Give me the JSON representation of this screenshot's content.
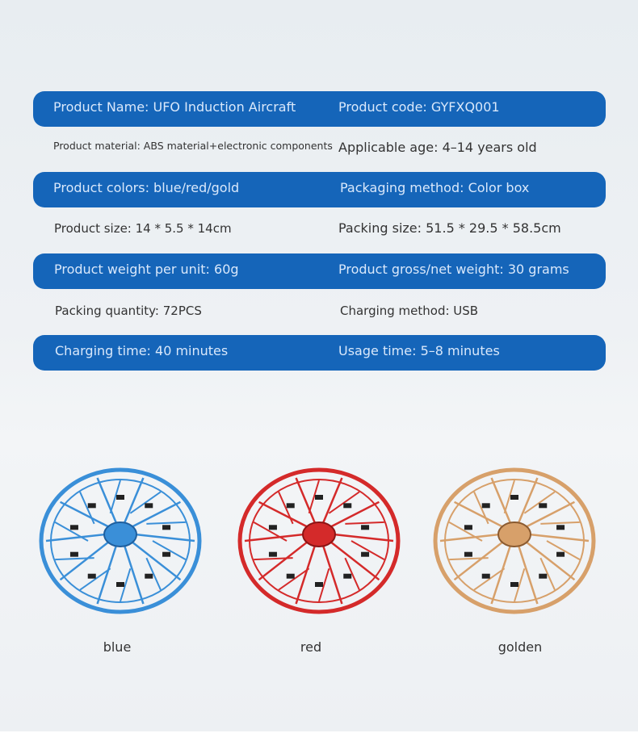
{
  "specs": [
    {
      "style": "blue",
      "left": "Product Name: UFO Induction Aircraft",
      "right": "Product code: GYFXQ001"
    },
    {
      "style": "plain",
      "left": "Product material: ABS material+electronic components",
      "right": "Applicable age: 4–14 years old"
    },
    {
      "style": "blue",
      "left": "Product colors: blue/red/gold",
      "right": "Packaging method: Color box"
    },
    {
      "style": "plain",
      "left": "Product size: 14 * 5.5 * 14cm",
      "right": "Packing size: 51.5 * 29.5 * 58.5cm"
    },
    {
      "style": "blue",
      "left": "Product weight per unit: 60g",
      "right": "Product gross/net weight: 30 grams"
    },
    {
      "style": "plain",
      "left": "Packing quantity: 72PCS",
      "right": "Charging method: USB"
    },
    {
      "style": "blue",
      "left": "Charging time: 40 minutes",
      "right": "Usage time: 5–8 minutes"
    }
  ],
  "variants": [
    {
      "label": "blue",
      "color": "#3a8fd8",
      "dark": "#1f5f9e"
    },
    {
      "label": "red",
      "color": "#d42a2a",
      "dark": "#8c1414"
    },
    {
      "label": "golden",
      "color": "#d7a06a",
      "dark": "#8a5a30"
    }
  ],
  "colors": {
    "bar": "#1565b9",
    "bar_text": "#d9e8fb"
  }
}
